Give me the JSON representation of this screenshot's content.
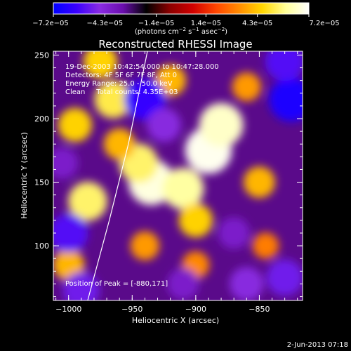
{
  "chart_data": {
    "type": "heatmap",
    "title": "Reconstructed RHESSI Image",
    "xlabel": "Heliocentric X (arcsec)",
    "ylabel": "Heliocentric Y (arcsec)",
    "xlim": [
      -1012,
      -816
    ],
    "ylim": [
      57,
      253
    ],
    "x_ticks": [
      -1000,
      -950,
      -900,
      -850
    ],
    "x_tick_labels": [
      "−1000",
      "−950",
      "−900",
      "−850"
    ],
    "y_ticks": [
      100,
      150,
      200,
      250
    ],
    "y_tick_labels": [
      "100",
      "150",
      "200",
      "250"
    ],
    "colorbar": {
      "range": [
        -7.2e-05,
        7.2e-05
      ],
      "ticks": [
        -7.2e-05,
        -4.3e-05,
        -1.4e-05,
        1.4e-05,
        4.3e-05,
        7.2e-05
      ],
      "tick_labels": [
        "−7.2e−05",
        "−4.3e−05",
        "−1.4e−05",
        "1.4e−05",
        "4.3e−05",
        "7.2e−05"
      ],
      "unit_prefix": "(photons cm",
      "unit_exp1": "−2",
      "unit_mid": " s",
      "unit_exp2": "−1",
      "unit_suffix": " asec",
      "unit_exp3": "−2",
      "unit_end": ")",
      "colors": [
        "#0000ff",
        "#3a00ff",
        "#8a2be2",
        "#6a0dad",
        "#000000",
        "#8b0000",
        "#d00000",
        "#ff4500",
        "#ff8c00",
        "#ffd700",
        "#ffff99",
        "#ffffff"
      ]
    },
    "annotations": [
      "19-Dec-2003 10:42:54.000 to 10:47:28.000",
      "Detectors: 4F 5F 6F 7F 8F, Att 0",
      "Energy Range: 25.0 - 50.0 keV",
      "Clean     Total counts: 4.35E+03"
    ],
    "peak_label": "Position of Peak = [-880,171]",
    "peak": [
      -880,
      171
    ],
    "limb_line": [
      [
        -985,
        57
      ],
      [
        -968,
        120
      ],
      [
        -953,
        180
      ],
      [
        -938,
        253
      ]
    ],
    "intensity_blobs": [
      {
        "x": -890,
        "y": 175,
        "v": 7e-05
      },
      {
        "x": -880,
        "y": 195,
        "v": 6.5e-05
      },
      {
        "x": -935,
        "y": 150,
        "v": 6.8e-05
      },
      {
        "x": -910,
        "y": 145,
        "v": 6e-05
      },
      {
        "x": -945,
        "y": 165,
        "v": 5.5e-05
      },
      {
        "x": -965,
        "y": 215,
        "v": 5.2e-05
      },
      {
        "x": -985,
        "y": 135,
        "v": 5.5e-05
      },
      {
        "x": -995,
        "y": 195,
        "v": 4.5e-05
      },
      {
        "x": -975,
        "y": 245,
        "v": 4.5e-05
      },
      {
        "x": -920,
        "y": 230,
        "v": 4e-05
      },
      {
        "x": -860,
        "y": 225,
        "v": 3.5e-05
      },
      {
        "x": -850,
        "y": 150,
        "v": 4e-05
      },
      {
        "x": -940,
        "y": 100,
        "v": 3.5e-05
      },
      {
        "x": -900,
        "y": 85,
        "v": 3.2e-05
      },
      {
        "x": -845,
        "y": 100,
        "v": 3e-05
      },
      {
        "x": -1000,
        "y": 85,
        "v": 4e-05
      },
      {
        "x": -900,
        "y": 120,
        "v": 4.5e-05
      },
      {
        "x": -960,
        "y": 180,
        "v": 4e-05
      },
      {
        "x": -1000,
        "y": 110,
        "v": -5.5e-05
      },
      {
        "x": -990,
        "y": 65,
        "v": -5e-05
      },
      {
        "x": -940,
        "y": 215,
        "v": -6e-05
      },
      {
        "x": -925,
        "y": 195,
        "v": -4.5e-05
      },
      {
        "x": -825,
        "y": 215,
        "v": -6.5e-05
      },
      {
        "x": -830,
        "y": 245,
        "v": -5.5e-05
      },
      {
        "x": -830,
        "y": 75,
        "v": -5e-05
      },
      {
        "x": -870,
        "y": 110,
        "v": -4e-05
      },
      {
        "x": -910,
        "y": 70,
        "v": -4e-05
      },
      {
        "x": -1005,
        "y": 165,
        "v": -4e-05
      },
      {
        "x": -860,
        "y": 70,
        "v": -4.5e-05
      }
    ]
  },
  "footer": {
    "date": "2-Jun-2013 07:18"
  }
}
